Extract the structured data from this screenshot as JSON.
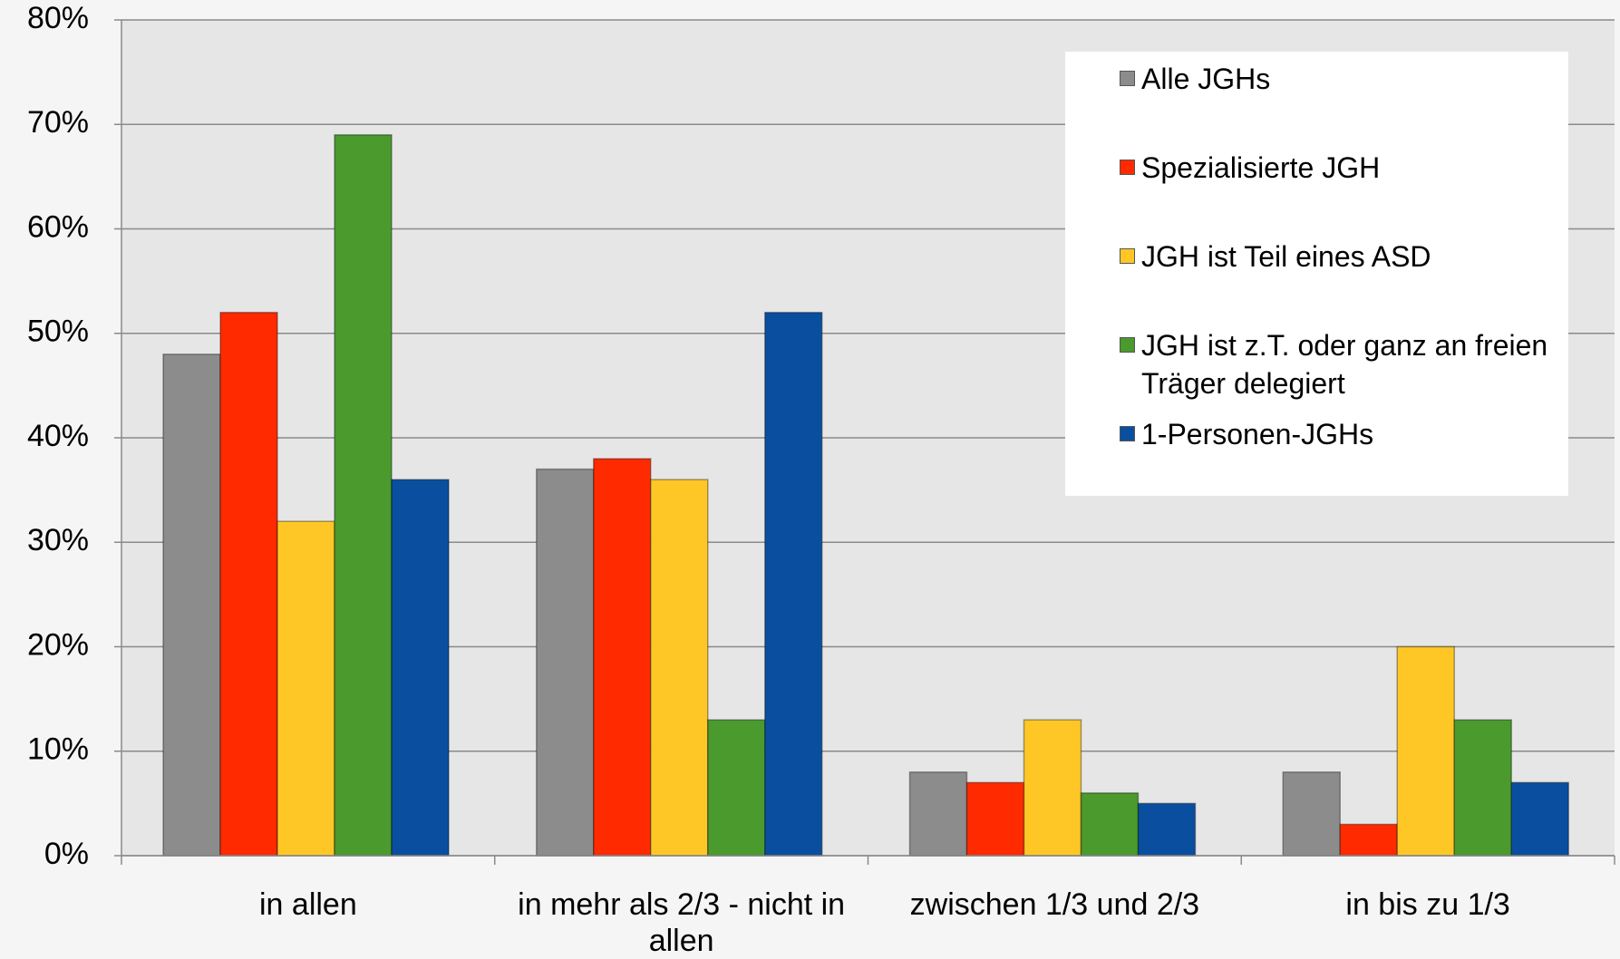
{
  "chart_data": {
    "type": "bar",
    "categories": [
      "in allen",
      "in mehr als 2/3 - nicht in allen",
      "zwischen 1/3 und 2/3",
      "in bis zu 1/3"
    ],
    "series": [
      {
        "name": "Alle JGHs",
        "color": "#8c8c8c",
        "values": [
          48,
          37,
          8,
          8
        ]
      },
      {
        "name": "Spezialisierte JGH",
        "color": "#ff2a00",
        "values": [
          52,
          38,
          7,
          3
        ]
      },
      {
        "name": "JGH ist Teil eines ASD",
        "color": "#ffc726",
        "values": [
          32,
          36,
          13,
          20
        ]
      },
      {
        "name": "JGH ist z.T. oder ganz an freien Träger delegiert",
        "color": "#4a9a2e",
        "values": [
          69,
          13,
          6,
          13
        ]
      },
      {
        "name": "1-Personen-JGHs",
        "color": "#0a4f9f",
        "values": [
          36,
          52,
          5,
          7
        ]
      }
    ],
    "ylim": [
      0,
      80
    ],
    "yticks": [
      {
        "value": 0,
        "label": "0%"
      },
      {
        "value": 10,
        "label": "10%"
      },
      {
        "value": 20,
        "label": "20%"
      },
      {
        "value": 30,
        "label": "30%"
      },
      {
        "value": 40,
        "label": "40%"
      },
      {
        "value": 50,
        "label": "50%"
      },
      {
        "value": 60,
        "label": "60%"
      },
      {
        "value": 70,
        "label": "70%"
      },
      {
        "value": 80,
        "label": "80%"
      }
    ],
    "grid": true,
    "legend": "upper right"
  }
}
